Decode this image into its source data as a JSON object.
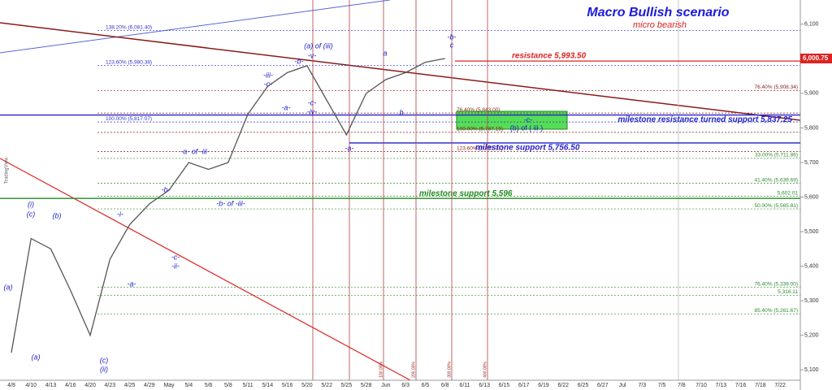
{
  "chart_data": {
    "type": "line",
    "title": "Macro Bullish scenario",
    "subtitle": "micro bearish",
    "categories": [
      "4/8",
      "4/10",
      "4/13",
      "4/16",
      "4/20",
      "4/23",
      "4/25",
      "4/29",
      "May",
      "5/4",
      "5/6",
      "5/8",
      "5/11",
      "5/14",
      "5/16",
      "5/20",
      "5/22",
      "5/25",
      "5/28",
      "Jun",
      "6/3",
      "6/5",
      "6/8",
      "6/11",
      "6/13",
      "6/15",
      "6/17",
      "6/19",
      "6/22",
      "6/25",
      "6/27",
      "Jul",
      "7/3",
      "7/5",
      "7/8",
      "7/10",
      "7/13",
      "7/16",
      "7/18",
      "7/22"
    ],
    "series": [
      {
        "name": "Price",
        "color": "#555555",
        "values": [
          5150,
          5480,
          5450,
          5330,
          5200,
          5420,
          5520,
          5580,
          5620,
          5700,
          5680,
          5700,
          5840,
          5920,
          5960,
          5980,
          5880,
          5780,
          5900,
          5940,
          5960,
          5990,
          6000.75,
          null,
          null,
          null,
          null,
          null,
          null,
          null,
          null,
          null,
          null,
          null,
          null,
          null,
          null,
          null,
          null,
          null
        ]
      }
    ],
    "ylim": [
      5070,
      6170
    ],
    "yticks": [
      {
        "value": 5100,
        "label": "5,100"
      },
      {
        "value": 5200,
        "label": "5,200"
      },
      {
        "value": 5300,
        "label": "5,300"
      },
      {
        "value": 5400,
        "label": "5,400"
      },
      {
        "value": 5500,
        "label": "5,500"
      },
      {
        "value": 5600,
        "label": "5,600"
      },
      {
        "value": 5700,
        "label": "5,700"
      },
      {
        "value": 5800,
        "label": "5,800"
      },
      {
        "value": 5900,
        "label": "5,900"
      },
      {
        "value": 6000,
        "label": "6,000"
      },
      {
        "value": 6100,
        "label": "6,100"
      }
    ],
    "last_price": {
      "value": 6000.75,
      "label": "6,000.75"
    },
    "levels": [
      {
        "label": "138.20% (6,081.40)",
        "value": 6081.4,
        "color": "#3333cc"
      },
      {
        "label": "123.60% (5,980.38)",
        "value": 5980.38,
        "color": "#3333cc"
      },
      {
        "label": "100.00% (5,817.07)",
        "value": 5817.07,
        "color": "#3333cc"
      },
      {
        "label": "76.40% (5,908.34)",
        "value": 5908.34,
        "color": "#8b1a1a"
      },
      {
        "label": "76.40% (5,843.00)",
        "value": 5843,
        "color": "#8b1a1a"
      },
      {
        "label": "100.00% (5,787.15)",
        "value": 5787.15,
        "color": "#8b1a1a"
      },
      {
        "label": "123.60% (5,731.31)",
        "value": 5731.31,
        "color": "#8b1a1a"
      },
      {
        "label": "33.00% (5,711.86)",
        "value": 5711.86,
        "color": "#2e8b2e"
      },
      {
        "label": "41.40% (5,639.69)",
        "value": 5639.69,
        "color": "#2e8b2e"
      },
      {
        "label": "5,602.01",
        "value": 5602.01,
        "color": "#2e8b2e"
      },
      {
        "label": "50.00% (5,565.81)",
        "value": 5565.81,
        "color": "#2e8b2e"
      },
      {
        "label": "76.40% (5,339.00)",
        "value": 5339,
        "color": "#2e8b2e"
      },
      {
        "label": "5,316.11",
        "value": 5316.11,
        "color": "#2e8b2e"
      },
      {
        "label": "85.40% (5,261.67)",
        "value": 5261.67,
        "color": "#2e8b2e"
      }
    ],
    "milestones": [
      {
        "label": "resistance 5,993.50",
        "value": 5993.5,
        "color": "#dd2222"
      },
      {
        "label": "milestone resistance turned support 5,837.25",
        "value": 5837.25,
        "color": "#2222cc"
      },
      {
        "label": "milestone support 5,756.50",
        "value": 5756.5,
        "color": "#2222cc"
      },
      {
        "label": "milestone support 5,596",
        "value": 5596,
        "color": "#228b22"
      }
    ],
    "zone_labels": [
      "-c-",
      "(b) of ( iii )"
    ],
    "wave_labels": [
      "(a)",
      "(a)",
      "(i)",
      "(c)",
      "(b)",
      "(c)",
      "(ii)",
      "-i-",
      "-a-",
      "-c-",
      "-ii-",
      "-b-",
      "-a- of -iii-",
      "-b- of -iii-",
      "-iii-",
      "-c-",
      "-a-",
      "(a) of (iii)",
      "-v-",
      "-b-",
      "-c-",
      "-iv-",
      "-a-",
      "a",
      "b",
      "-b-",
      "c"
    ],
    "time_labels": [
      "100.00%",
      "200.00%",
      "300.00%",
      "400.00%"
    ],
    "watermark": "TradingView"
  }
}
